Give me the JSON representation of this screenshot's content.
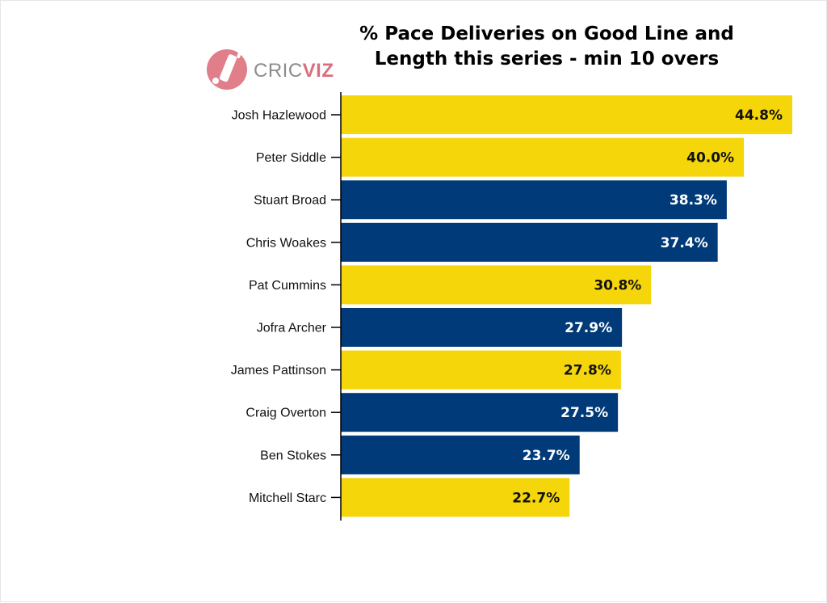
{
  "logo": {
    "part1": "CRIC",
    "part2": "VIZ"
  },
  "chart_data": {
    "type": "bar",
    "orientation": "horizontal",
    "title": "% Pace Deliveries on Good Line and Length this series - min 10 overs",
    "title_lines": [
      "% Pace Deliveries on Good Line and",
      "Length this series - min 10 overs"
    ],
    "categories": [
      "Josh Hazlewood",
      "Peter Siddle",
      "Stuart Broad",
      "Chris Woakes",
      "Pat Cummins",
      "Jofra Archer",
      "James Pattinson",
      "Craig Overton",
      "Ben Stokes",
      "Mitchell Starc"
    ],
    "values": [
      44.8,
      40.0,
      38.3,
      37.4,
      30.8,
      27.9,
      27.8,
      27.5,
      23.7,
      22.7
    ],
    "value_labels": [
      "44.8%",
      "40.0%",
      "38.3%",
      "37.4%",
      "30.8%",
      "27.9%",
      "27.8%",
      "27.5%",
      "23.7%",
      "22.7%"
    ],
    "bar_colors": [
      "#f5d60a",
      "#f5d60a",
      "#003a78",
      "#003a78",
      "#f5d60a",
      "#003a78",
      "#f5d60a",
      "#003a78",
      "#003a78",
      "#f5d60a"
    ],
    "label_colors": [
      "#111111",
      "#111111",
      "#ffffff",
      "#ffffff",
      "#111111",
      "#ffffff",
      "#111111",
      "#ffffff",
      "#ffffff",
      "#111111"
    ],
    "xlim": [
      0,
      44.8
    ],
    "xlabel": "",
    "ylabel": "",
    "grid": false,
    "legend": "none"
  }
}
